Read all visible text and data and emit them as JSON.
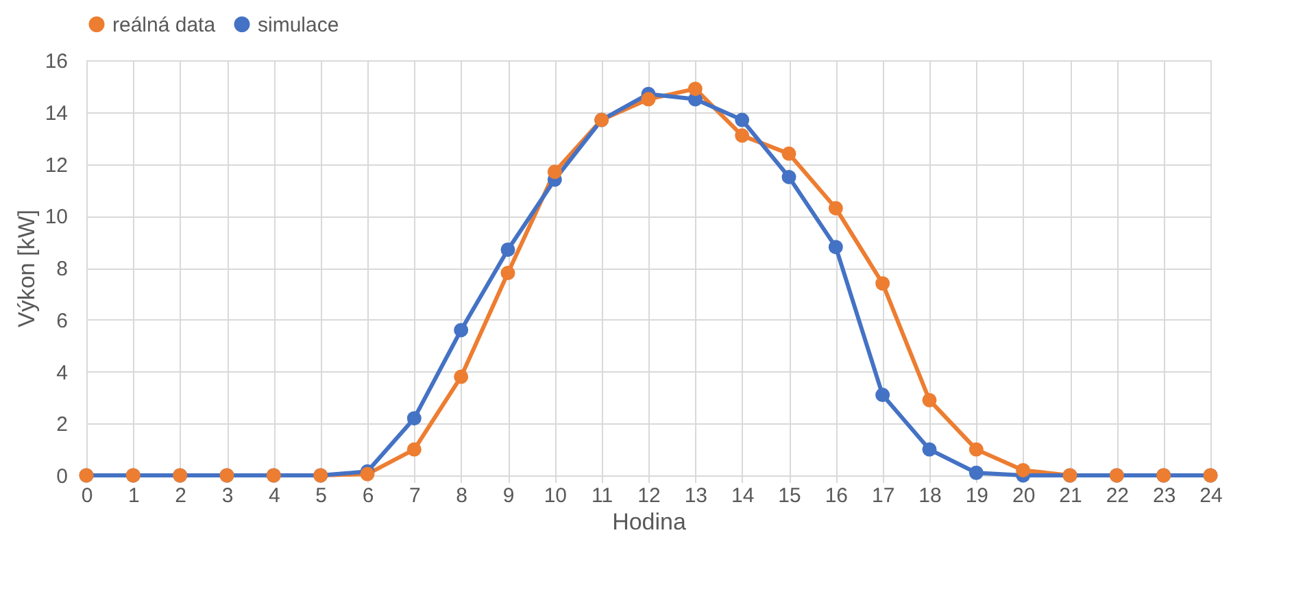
{
  "chart_data": {
    "type": "line",
    "xlabel": "Hodina",
    "ylabel": "Výkon [kW]",
    "x": [
      0,
      1,
      2,
      3,
      4,
      5,
      6,
      7,
      8,
      9,
      10,
      11,
      12,
      13,
      14,
      15,
      16,
      17,
      18,
      19,
      20,
      21,
      22,
      23,
      24
    ],
    "series": [
      {
        "name": "reálná data",
        "color": "#ed7d31",
        "values": [
          0,
          0,
          0,
          0,
          0,
          0,
          0.05,
          1.0,
          3.8,
          7.8,
          11.7,
          13.7,
          14.5,
          14.9,
          13.1,
          12.4,
          10.3,
          7.4,
          2.9,
          1.0,
          0.2,
          0,
          0,
          0,
          0
        ]
      },
      {
        "name": "simulace",
        "color": "#4472c4",
        "values": [
          0,
          0,
          0,
          0,
          0,
          0,
          0.15,
          2.2,
          5.6,
          8.7,
          11.4,
          13.7,
          14.7,
          14.5,
          13.7,
          11.5,
          8.8,
          3.1,
          1.0,
          0.1,
          0,
          0,
          0,
          0,
          0
        ]
      }
    ],
    "xlim": [
      0,
      24
    ],
    "xticks": [
      0,
      1,
      2,
      3,
      4,
      5,
      6,
      7,
      8,
      9,
      10,
      11,
      12,
      13,
      14,
      15,
      16,
      17,
      18,
      19,
      20,
      21,
      22,
      23,
      24
    ],
    "ylim": [
      0,
      16
    ],
    "yticks": [
      0,
      2,
      4,
      6,
      8,
      10,
      12,
      14,
      16
    ],
    "grid": true,
    "legend": "top",
    "marker": "circle",
    "line_style": "solid"
  }
}
